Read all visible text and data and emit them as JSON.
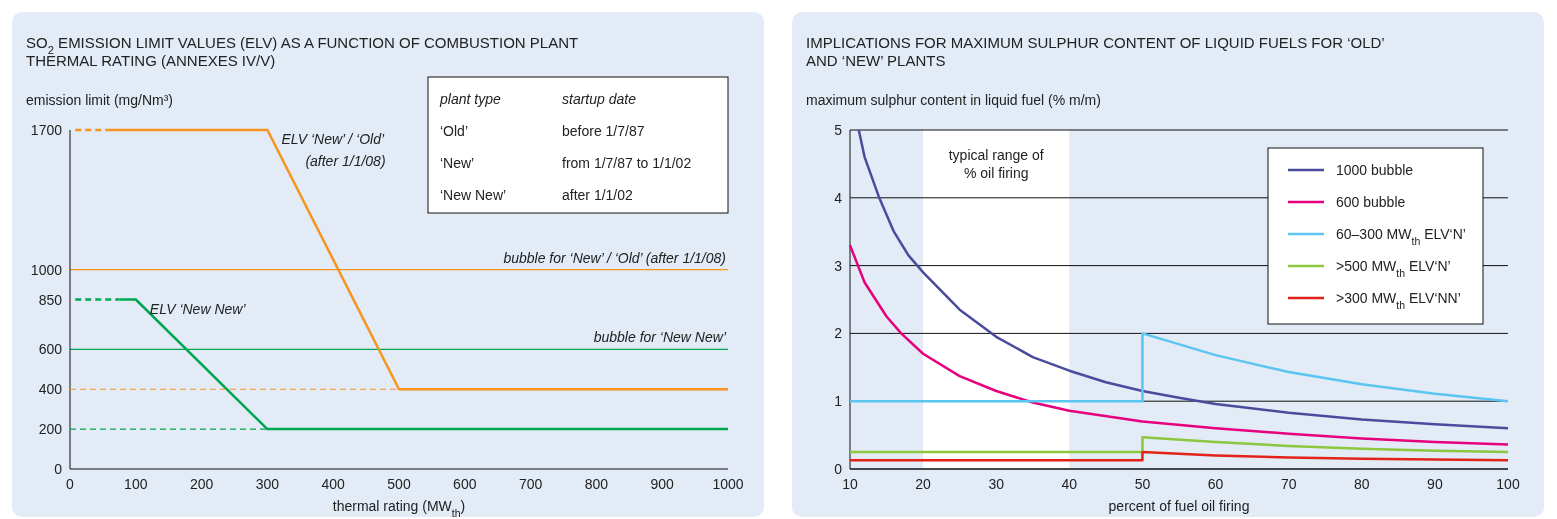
{
  "chart_data": [
    {
      "type": "line",
      "title": "SO$_{2}$ EMISSION LIMIT VALUES (ELV) AS A FUNCTION OF COMBUSTION PLANT THERMAL RATING (ANNEXES IV/V)",
      "xlabel": "thermal rating (MW$_{th}$)",
      "ylabel": "emission limit (mg/Nm³)",
      "xlim": [
        0,
        1000
      ],
      "ylim": [
        0,
        1700
      ],
      "xticks": [
        0,
        100,
        200,
        300,
        400,
        500,
        600,
        700,
        800,
        900,
        1000
      ],
      "yticks": [
        0,
        200,
        400,
        600,
        850,
        1000,
        1700
      ],
      "grid": false,
      "legend": false,
      "series": [
        {
          "color": "#f7941d",
          "line_style": "dashed",
          "x": [
            8,
            58
          ],
          "values": [
            1700,
            1700
          ]
        },
        {
          "color": "#f7941d",
          "line_style": "solid",
          "x": [
            58,
            300,
            500,
            1000
          ],
          "values": [
            1700,
            1700,
            400,
            400
          ]
        },
        {
          "color": "#00a651",
          "line_style": "dashed",
          "x": [
            8,
            75
          ],
          "values": [
            850,
            850
          ]
        },
        {
          "color": "#00a651",
          "line_style": "solid",
          "x": [
            75,
            100,
            300,
            1000
          ],
          "values": [
            850,
            850,
            200,
            200
          ]
        },
        {
          "color": "#f7941d",
          "line_style": "dashed",
          "x": [
            0,
            500
          ],
          "values": [
            400,
            400
          ]
        },
        {
          "color": "#00a651",
          "line_style": "dashed",
          "x": [
            0,
            300
          ],
          "values": [
            200,
            200
          ]
        }
      ],
      "ref_lines": [
        {
          "axis": "y",
          "value": 1000,
          "label": "bubble for ‘New’ / ‘Old’  (after 1/1/08)",
          "color": "#f7941d"
        },
        {
          "axis": "y",
          "value": 600,
          "label": "bubble for ‘New New’",
          "color": "#00a651"
        }
      ],
      "annotations": [
        {
          "text": "ELV ‘New’ / ‘Old’\n(after 1/1/08)",
          "x": 300,
          "y": 1700
        },
        {
          "text": "ELV ‘New New’",
          "x": 100,
          "y": 850
        },
        "plant type",
        "startup date",
        "‘Old’",
        "before 1/7/87",
        "‘New’",
        "from 1/7/87 to 1/1/02",
        "‘New New’",
        "after 1/1/02"
      ]
    },
    {
      "type": "line",
      "title": "IMPLICATIONS FOR MAXIMUM SULPHUR CONTENT OF LIQUID FUELS FOR ‘OLD’ AND ‘NEW’ PLANTS",
      "xlabel": "percent of fuel oil firing",
      "ylabel": "maximum sulphur content in liquid fuel (% m/m)",
      "xlim": [
        10,
        100
      ],
      "ylim": [
        0,
        5
      ],
      "xticks": [
        10,
        20,
        30,
        40,
        50,
        60,
        70,
        80,
        90,
        100
      ],
      "yticks": [
        0,
        1,
        2,
        3,
        4,
        5
      ],
      "grid": "y",
      "legend": "top right",
      "bands": [
        {
          "axis": "x",
          "from": 20,
          "to": 40,
          "label": "typical range of\n% oil firing",
          "color": "#ffffff"
        }
      ],
      "series": [
        {
          "name": "1000 bubble",
          "color": "#4b4b9e",
          "x": [
            11.2,
            12,
            14,
            16,
            18,
            20,
            25,
            30,
            35,
            40,
            45,
            50,
            55,
            60,
            70,
            80,
            90,
            100
          ],
          "values": [
            5.0,
            4.6,
            4.0,
            3.5,
            3.15,
            2.9,
            2.35,
            1.95,
            1.65,
            1.45,
            1.28,
            1.15,
            1.05,
            0.96,
            0.83,
            0.73,
            0.66,
            0.6
          ]
        },
        {
          "name": "600 bubble",
          "color": "#e6007e",
          "x": [
            10,
            12,
            15,
            17,
            20,
            25,
            30,
            35,
            40,
            50,
            60,
            70,
            80,
            90,
            100
          ],
          "values": [
            3.3,
            2.75,
            2.25,
            2.0,
            1.7,
            1.37,
            1.15,
            0.98,
            0.86,
            0.7,
            0.6,
            0.52,
            0.45,
            0.4,
            0.36
          ]
        },
        {
          "name": "60–300 MW$_{th}$ ELV‘N’",
          "color": "#5bc5f2",
          "x": [
            10,
            50,
            50,
            60,
            70,
            80,
            90,
            100
          ],
          "values": [
            1.0,
            1.0,
            2.0,
            1.68,
            1.43,
            1.25,
            1.11,
            1.0
          ]
        },
        {
          "name": ">500 MW$_{th}$ ELV‘N’",
          "color": "#8dc63f",
          "x": [
            10,
            50,
            50,
            60,
            70,
            80,
            90,
            100
          ],
          "values": [
            0.25,
            0.25,
            0.47,
            0.4,
            0.34,
            0.3,
            0.27,
            0.25
          ]
        },
        {
          "name": ">300 MW$_{th}$ ELV‘NN’",
          "color": "#e2231a",
          "x": [
            10,
            50,
            50,
            60,
            70,
            80,
            90,
            100
          ],
          "values": [
            0.13,
            0.13,
            0.25,
            0.2,
            0.17,
            0.15,
            0.14,
            0.13
          ]
        }
      ]
    }
  ]
}
